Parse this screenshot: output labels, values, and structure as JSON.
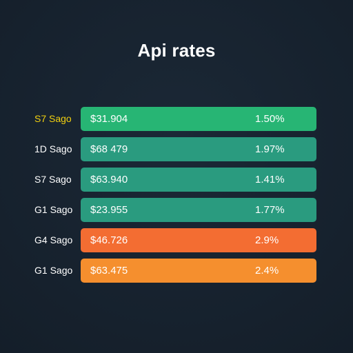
{
  "title": "Api rates",
  "rates": [
    {
      "label": "S7 Sago",
      "price": "$31.904",
      "percent": "1.50%",
      "color": "#27b574",
      "label_color": "#f2d10f"
    },
    {
      "label": "1D Sago",
      "price": "$68 479",
      "percent": "1.97%",
      "color": "#2a9b7f",
      "label_color": "#ffffff"
    },
    {
      "label": "S7 Sago",
      "price": "$63.940",
      "percent": "1.41%",
      "color": "#2a9b7f",
      "label_color": "#ffffff"
    },
    {
      "label": "G1 Sago",
      "price": "$23.955",
      "percent": "1.77%",
      "color": "#2a9b7f",
      "label_color": "#ffffff"
    },
    {
      "label": "G4 Sago",
      "price": "$46.726",
      "percent": "2.9%",
      "color": "#f36d32",
      "label_color": "#ffffff"
    },
    {
      "label": "G1 Sago",
      "price": "$63.475",
      "percent": "2.4%",
      "color": "#f58f2e",
      "label_color": "#ffffff"
    }
  ]
}
